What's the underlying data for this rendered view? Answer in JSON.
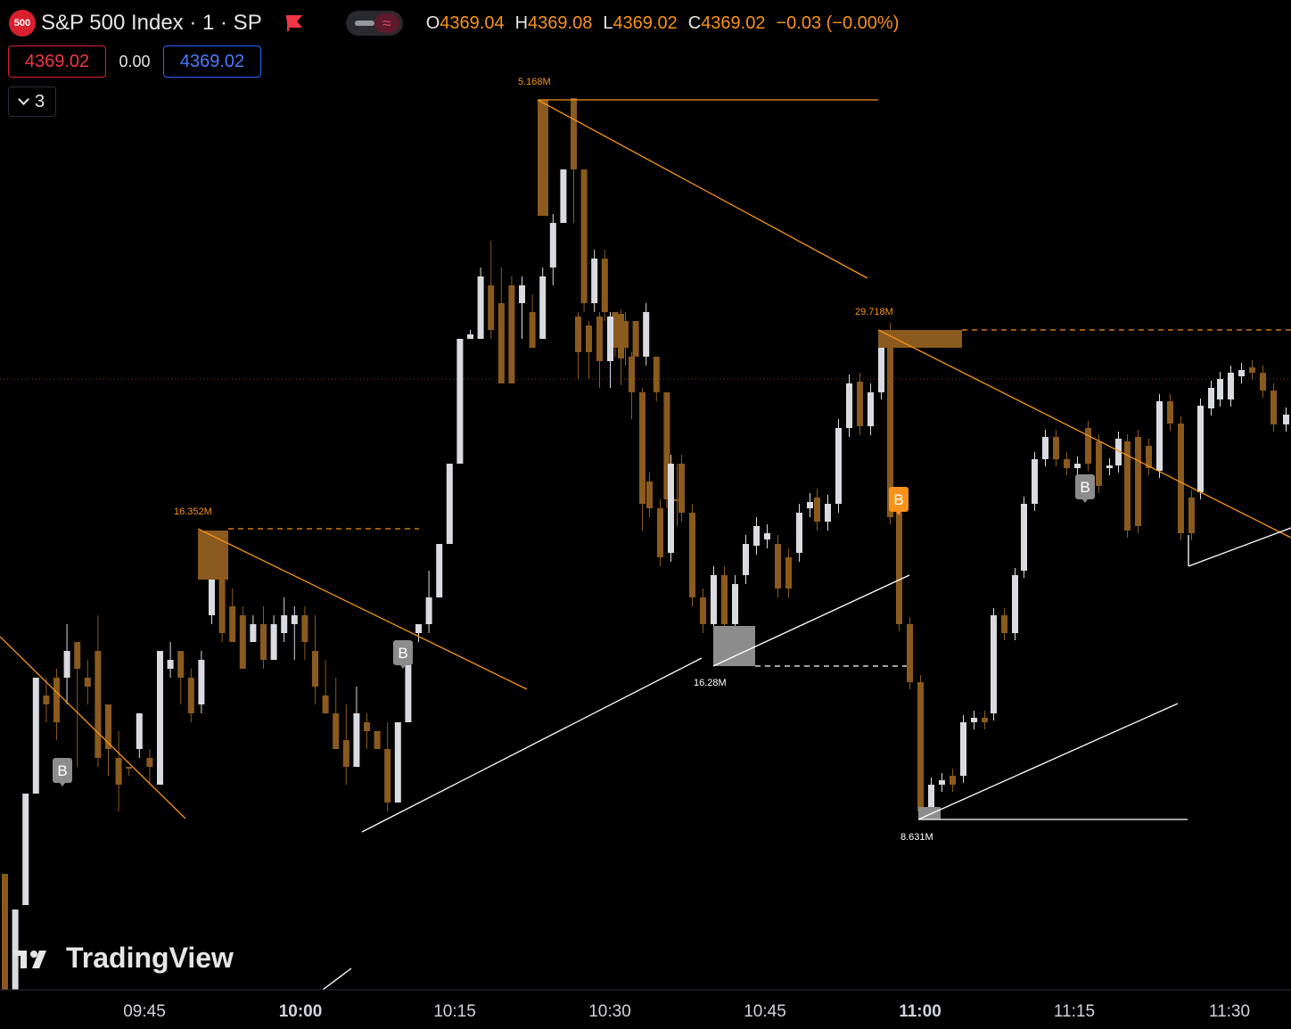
{
  "header": {
    "symbol_badge": "500",
    "title": "S&P 500 Index · 1 · SP",
    "ohlc": {
      "o_label": "O",
      "o_value": "4369.04",
      "h_label": "H",
      "h_value": "4369.08",
      "l_label": "L",
      "l_value": "4369.02",
      "c_label": "C",
      "c_value": "4369.02",
      "change": "−0.03 (−0.00%)"
    },
    "bid": "4369.02",
    "spread": "0.00",
    "ask": "4369.02",
    "indicators_count": "3",
    "toggle_glyph": "≈"
  },
  "branding": {
    "logo_text": "TradingView"
  },
  "colors": {
    "background": "#000000",
    "up_candle": "#d9dbe0",
    "down_candle": "#8a5a1e",
    "accent": "#f7931a",
    "bid": "#f23645",
    "ask": "#2962ff"
  },
  "chart_data": {
    "type": "candlestick",
    "x_axis": {
      "ticks": [
        "09:45",
        "10:00",
        "10:15",
        "10:30",
        "10:45",
        "11:00",
        "11:15",
        "11:30"
      ],
      "bold_ticks": [
        "10:00",
        "11:00"
      ]
    },
    "current_price_line": 4369.02,
    "volume_labels": [
      {
        "text": "5.168M",
        "color": "accent"
      },
      {
        "text": "29.718M",
        "color": "accent"
      },
      {
        "text": "16.352M",
        "color": "accent"
      },
      {
        "text": "16.28M",
        "color": "white"
      },
      {
        "text": "8.631M",
        "color": "white"
      }
    ],
    "signal_markers": [
      {
        "text": "B",
        "style": "gray"
      },
      {
        "text": "B",
        "style": "gray"
      },
      {
        "text": "B",
        "style": "orange"
      },
      {
        "text": "B",
        "style": "gray"
      }
    ],
    "candles_relative": [
      [
        0,
        980,
        1110,
        1110,
        980,
        0
      ],
      [
        1,
        1020,
        1110,
        1110,
        1020,
        1
      ],
      [
        2,
        890,
        1015,
        1015,
        890,
        1
      ],
      [
        3,
        760,
        890,
        890,
        760,
        1
      ],
      [
        4,
        760,
        810,
        780,
        790,
        0
      ],
      [
        5,
        750,
        830,
        760,
        810,
        0
      ],
      [
        6,
        700,
        790,
        730,
        760,
        1
      ],
      [
        7,
        720,
        860,
        720,
        750,
        0
      ],
      [
        8,
        740,
        790,
        760,
        770,
        0
      ],
      [
        9,
        690,
        860,
        730,
        850,
        0
      ],
      [
        10,
        790,
        870,
        790,
        840,
        0
      ],
      [
        11,
        820,
        910,
        850,
        880,
        0
      ],
      [
        12,
        860,
        870,
        860,
        860,
        0
      ],
      [
        13,
        800,
        850,
        800,
        840,
        1
      ],
      [
        14,
        840,
        880,
        850,
        860,
        0
      ],
      [
        15,
        730,
        880,
        730,
        880,
        1
      ],
      [
        16,
        720,
        760,
        740,
        750,
        1
      ],
      [
        17,
        730,
        790,
        730,
        760,
        0
      ],
      [
        18,
        750,
        810,
        760,
        800,
        0
      ],
      [
        19,
        730,
        800,
        740,
        790,
        1
      ],
      [
        20,
        640,
        700,
        650,
        690,
        1
      ],
      [
        21,
        620,
        720,
        650,
        710,
        0
      ],
      [
        22,
        660,
        720,
        680,
        720,
        0
      ],
      [
        23,
        680,
        750,
        690,
        750,
        0
      ],
      [
        24,
        690,
        720,
        700,
        720,
        1
      ],
      [
        25,
        680,
        750,
        700,
        740,
        0
      ],
      [
        26,
        690,
        740,
        700,
        740,
        1
      ],
      [
        27,
        670,
        720,
        690,
        710,
        1
      ],
      [
        28,
        680,
        740,
        690,
        700,
        1
      ],
      [
        29,
        680,
        740,
        690,
        720,
        0
      ],
      [
        30,
        690,
        790,
        730,
        770,
        0
      ],
      [
        31,
        740,
        800,
        780,
        800,
        0
      ],
      [
        32,
        760,
        820,
        800,
        840,
        0
      ],
      [
        33,
        790,
        880,
        830,
        860,
        0
      ],
      [
        34,
        770,
        860,
        800,
        860,
        1
      ],
      [
        35,
        800,
        840,
        810,
        820,
        0
      ],
      [
        36,
        820,
        830,
        820,
        840,
        0
      ],
      [
        37,
        810,
        910,
        840,
        900,
        0
      ],
      [
        38,
        810,
        900,
        810,
        900,
        1
      ],
      [
        39,
        720,
        810,
        730,
        810,
        1
      ],
      [
        40,
        700,
        720,
        700,
        710,
        1
      ],
      [
        41,
        640,
        710,
        670,
        700,
        1
      ],
      [
        42,
        610,
        670,
        610,
        670,
        1
      ],
      [
        43,
        520,
        610,
        520,
        610,
        1
      ],
      [
        44,
        380,
        520,
        380,
        520,
        1
      ],
      [
        45,
        370,
        380,
        375,
        380,
        1
      ],
      [
        46,
        300,
        380,
        310,
        380,
        1
      ],
      [
        47,
        270,
        380,
        320,
        370,
        0
      ],
      [
        48,
        300,
        430,
        340,
        430,
        0
      ],
      [
        49,
        310,
        430,
        320,
        430,
        0
      ],
      [
        50,
        310,
        380,
        320,
        340,
        1
      ],
      [
        51,
        330,
        390,
        350,
        390,
        0
      ],
      [
        52,
        300,
        380,
        310,
        380,
        1
      ],
      [
        53,
        240,
        320,
        250,
        300,
        1
      ],
      [
        54,
        190,
        250,
        190,
        250,
        1
      ],
      [
        55,
        110,
        250,
        110,
        190,
        0
      ],
      [
        56,
        190,
        350,
        190,
        340,
        0
      ],
      [
        57,
        280,
        350,
        290,
        340,
        1
      ],
      [
        58,
        280,
        360,
        290,
        350,
        0
      ],
      [
        59,
        350,
        400,
        350,
        390,
        0
      ],
      [
        60,
        350,
        410,
        360,
        390,
        0
      ],
      [
        61,
        360,
        400,
        360,
        400,
        0
      ],
      [
        62,
        340,
        410,
        350,
        400,
        1
      ],
      [
        63,
        400,
        450,
        400,
        440,
        0
      ],
      [
        64,
        440,
        570,
        440,
        560,
        0
      ],
      [
        65,
        520,
        590,
        560,
        560,
        0
      ]
    ]
  }
}
